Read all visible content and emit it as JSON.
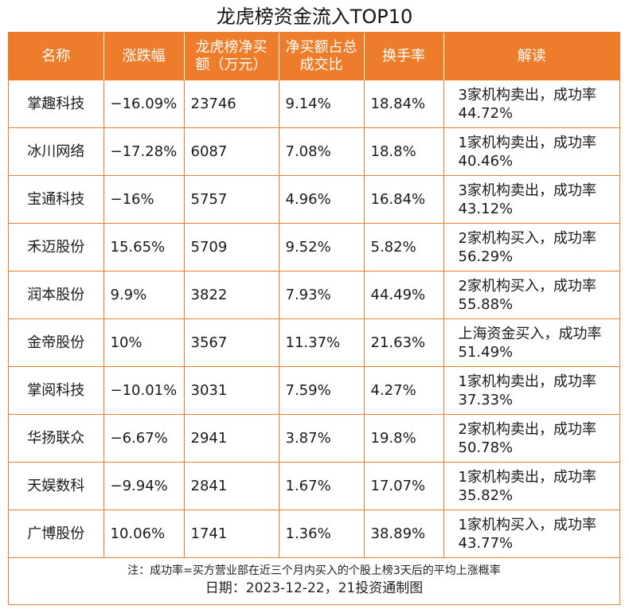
{
  "title": "龙虎榜资金流入TOP10",
  "columns": [
    "名称",
    "涨跌幅",
    "龙虎榜净买额（万元）",
    "净买额占总成交比",
    "换手率",
    "解读"
  ],
  "rows": [
    {
      "name": "掌趣科技",
      "change": "−16.09%",
      "net_buy": "23746",
      "ratio": "9.14%",
      "turnover": "18.84%",
      "note": "3家机构卖出，成功率44.72%"
    },
    {
      "name": "冰川网络",
      "change": "−17.28%",
      "net_buy": "6087",
      "ratio": "7.08%",
      "turnover": "18.8%",
      "note": "1家机构卖出，成功率40.46%"
    },
    {
      "name": "宝通科技",
      "change": "−16%",
      "net_buy": "5757",
      "ratio": "4.96%",
      "turnover": "16.84%",
      "note": "3家机构卖出，成功率43.12%"
    },
    {
      "name": "禾迈股份",
      "change": "15.65%",
      "net_buy": "5709",
      "ratio": "9.52%",
      "turnover": "5.82%",
      "note": "2家机构买入，成功率56.29%"
    },
    {
      "name": "润本股份",
      "change": "9.9%",
      "net_buy": "3822",
      "ratio": "7.93%",
      "turnover": "44.49%",
      "note": "2家机构买入，成功率55.88%"
    },
    {
      "name": "金帝股份",
      "change": "10%",
      "net_buy": "3567",
      "ratio": "11.37%",
      "turnover": "21.63%",
      "note": "上海资金买入，成功率51.49%"
    },
    {
      "name": "掌阅科技",
      "change": "−10.01%",
      "net_buy": "3031",
      "ratio": "7.59%",
      "turnover": "4.27%",
      "note": "1家机构卖出，成功率37.33%"
    },
    {
      "name": "华扬联众",
      "change": "−6.67%",
      "net_buy": "2941",
      "ratio": "3.87%",
      "turnover": "19.8%",
      "note": "2家机构卖出，成功率50.78%"
    },
    {
      "name": "天娱数科",
      "change": "−9.94%",
      "net_buy": "2841",
      "ratio": "1.67%",
      "turnover": "17.07%",
      "note": "1家机构卖出，成功率35.82%"
    },
    {
      "name": "广博股份",
      "change": "10.06%",
      "net_buy": "1741",
      "ratio": "1.36%",
      "turnover": "38.89%",
      "note": "1家机构买入，成功率43.77%"
    }
  ],
  "footnote": "注：成功率=买方营业部在近三个月内买入的个股上榜3天后的平均上涨概率",
  "date_line": "日期：2023-12-22，21投资通制图",
  "colors": {
    "accent": "#ee7d2b",
    "header_text": "#ffffff"
  }
}
